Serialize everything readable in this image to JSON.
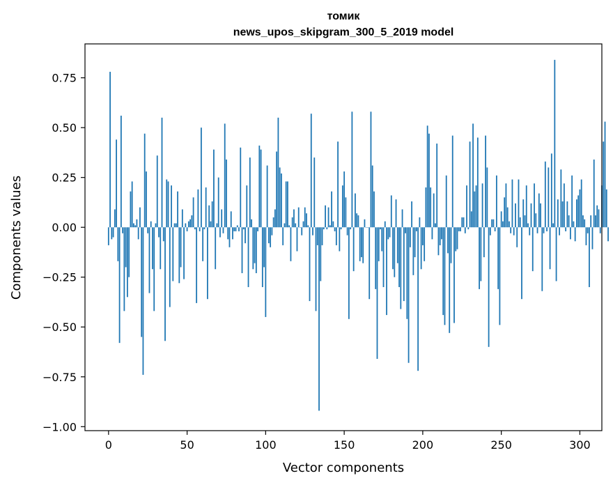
{
  "chart_data": {
    "type": "bar",
    "title_lines": [
      "томик",
      "news_upos_skipgram_300_5_2019 model"
    ],
    "xlabel": "Vector components",
    "ylabel": "Components values",
    "xlim": [
      -15,
      314
    ],
    "ylim": [
      -1.02,
      0.92
    ],
    "xticks": [
      0,
      50,
      100,
      150,
      200,
      250,
      300
    ],
    "yticks": [
      0.75,
      0.5,
      0.25,
      0.0,
      -0.25,
      -0.5,
      -0.75,
      -1.0
    ],
    "ytick_labels": [
      "0.75",
      "0.50",
      "0.25",
      "0.00",
      "−0.25",
      "−0.50",
      "−0.75",
      "−1.00"
    ],
    "bar_color": "#1f77b4",
    "grid": false,
    "values": [
      -0.09,
      0.78,
      -0.06,
      -0.05,
      0.09,
      0.44,
      -0.17,
      -0.58,
      0.56,
      -0.03,
      -0.42,
      -0.2,
      -0.35,
      -0.25,
      0.18,
      0.23,
      0.02,
      0.01,
      0.04,
      -0.06,
      0.1,
      -0.55,
      -0.74,
      0.47,
      0.28,
      -0.03,
      -0.33,
      0.03,
      -0.21,
      -0.42,
      0.02,
      0.36,
      -0.05,
      -0.21,
      0.55,
      -0.07,
      -0.57,
      0.24,
      0.23,
      -0.4,
      0.21,
      -0.27,
      0.02,
      0.02,
      0.18,
      -0.28,
      -0.2,
      0.09,
      -0.26,
      0.02,
      -0.02,
      0.03,
      0.04,
      0.06,
      0.15,
      -0.01,
      -0.38,
      0.19,
      -0.02,
      0.5,
      -0.17,
      -0.01,
      0.2,
      -0.36,
      0.11,
      0.03,
      0.13,
      0.39,
      -0.21,
      0.02,
      0.25,
      -0.05,
      0.09,
      -0.03,
      0.52,
      0.34,
      -0.06,
      -0.1,
      0.08,
      -0.06,
      -0.02,
      -0.02,
      0.01,
      -0.02,
      0.4,
      -0.23,
      -0.01,
      -0.08,
      0.21,
      -0.3,
      0.35,
      0.04,
      -0.21,
      -0.18,
      -0.23,
      -0.02,
      0.41,
      0.39,
      -0.3,
      -0.2,
      -0.45,
      0.31,
      -0.08,
      -0.1,
      -0.04,
      0.05,
      0.09,
      0.38,
      0.55,
      0.3,
      0.27,
      -0.09,
      0.02,
      0.23,
      0.23,
      0.01,
      -0.17,
      0.05,
      0.09,
      0.02,
      -0.12,
      0.1,
      0.0,
      -0.04,
      0.03,
      0.1,
      0.07,
      0.01,
      -0.37,
      0.57,
      -0.04,
      0.35,
      -0.42,
      -0.09,
      -0.92,
      -0.27,
      -0.09,
      -0.01,
      0.11,
      -0.01,
      0.1,
      0.01,
      0.18,
      0.03,
      -0.02,
      -0.09,
      0.43,
      -0.12,
      -0.01,
      0.21,
      0.28,
      0.15,
      -0.04,
      -0.46,
      -0.01,
      0.58,
      -0.22,
      0.17,
      0.07,
      0.06,
      -0.17,
      -0.15,
      -0.18,
      0.04,
      0.0,
      0.0,
      -0.36,
      0.58,
      0.31,
      0.18,
      -0.31,
      -0.66,
      -0.17,
      -0.01,
      -0.12,
      -0.3,
      0.03,
      -0.44,
      -0.06,
      -0.05,
      0.16,
      -0.21,
      -0.25,
      0.14,
      -0.18,
      -0.3,
      -0.41,
      0.09,
      -0.37,
      -0.03,
      -0.46,
      -0.68,
      -0.1,
      0.13,
      -0.24,
      -0.15,
      -0.02,
      -0.72,
      0.05,
      -0.21,
      -0.09,
      -0.17,
      0.2,
      0.51,
      0.47,
      0.2,
      -0.06,
      0.17,
      0.02,
      0.42,
      -0.14,
      -0.09,
      -0.06,
      -0.44,
      -0.49,
      0.26,
      -0.13,
      -0.53,
      -0.18,
      0.46,
      -0.48,
      -0.12,
      -0.11,
      -0.02,
      -0.02,
      0.05,
      0.05,
      -0.03,
      0.21,
      -0.01,
      0.43,
      0.08,
      0.52,
      0.18,
      0.21,
      0.45,
      -0.31,
      -0.27,
      0.22,
      -0.15,
      0.46,
      0.3,
      -0.6,
      -0.04,
      0.04,
      0.04,
      -0.02,
      0.26,
      -0.31,
      -0.49,
      0.08,
      0.03,
      0.15,
      0.22,
      0.1,
      0.03,
      -0.03,
      0.24,
      -0.04,
      0.12,
      -0.1,
      0.24,
      0.05,
      -0.36,
      0.14,
      0.06,
      0.21,
      0.02,
      -0.04,
      0.12,
      -0.22,
      0.22,
      0.07,
      -0.03,
      0.17,
      0.12,
      -0.32,
      -0.03,
      0.33,
      -0.02,
      0.3,
      -0.21,
      0.37,
      0.02,
      0.84,
      -0.27,
      0.14,
      -0.04,
      0.29,
      0.13,
      0.22,
      -0.02,
      0.13,
      0.06,
      -0.06,
      0.26,
      0.03,
      -0.07,
      0.14,
      0.16,
      0.19,
      0.24,
      0.06,
      0.04,
      -0.09,
      -0.03,
      -0.3,
      0.06,
      -0.11,
      0.34,
      0.06,
      0.11,
      0.09,
      -0.03,
      0.21,
      0.43,
      0.53,
      0.19,
      -0.07
    ]
  }
}
